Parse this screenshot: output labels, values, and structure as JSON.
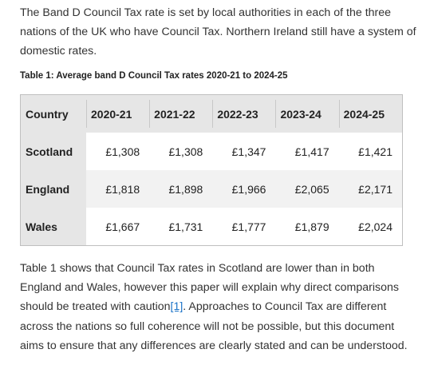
{
  "intro": {
    "text": "The Band D Council Tax rate is set by local authorities in each of the three nations of the UK who have Council Tax. Northern Ireland still have a system of domestic rates."
  },
  "table": {
    "caption": "Table 1: Average band D Council Tax rates 2020-21 to 2024-25",
    "corner_header": "Country",
    "year_headers": [
      "2020-21",
      "2021-22",
      "2022-23",
      "2023-24",
      "2024-25"
    ],
    "rows": [
      {
        "country": "Scotland",
        "values": [
          "£1,308",
          "£1,308",
          "£1,347",
          "£1,417",
          "£1,421"
        ]
      },
      {
        "country": "England",
        "values": [
          "£1,818",
          "£1,898",
          "£1,966",
          "£2,065",
          "£2,171"
        ]
      },
      {
        "country": "Wales",
        "values": [
          "£1,667",
          "£1,731",
          "£1,777",
          "£1,879",
          "£2,024"
        ]
      }
    ]
  },
  "body": {
    "before_link": "Table 1 shows that Council Tax rates in Scotland are lower than in both England and Wales, however this paper will explain why direct comparisons should be treated with caution",
    "link_text": "[1]",
    "after_link": ". Approaches to Council Tax are different across the nations so full coherence will not be possible, but this document aims to ensure that any differences are clearly stated and can be understood."
  },
  "colors": {
    "text": "#333333",
    "header_bg": "#e6e6e6",
    "stripe_bg": "#f2f2f2",
    "link": "#1a73c8"
  }
}
